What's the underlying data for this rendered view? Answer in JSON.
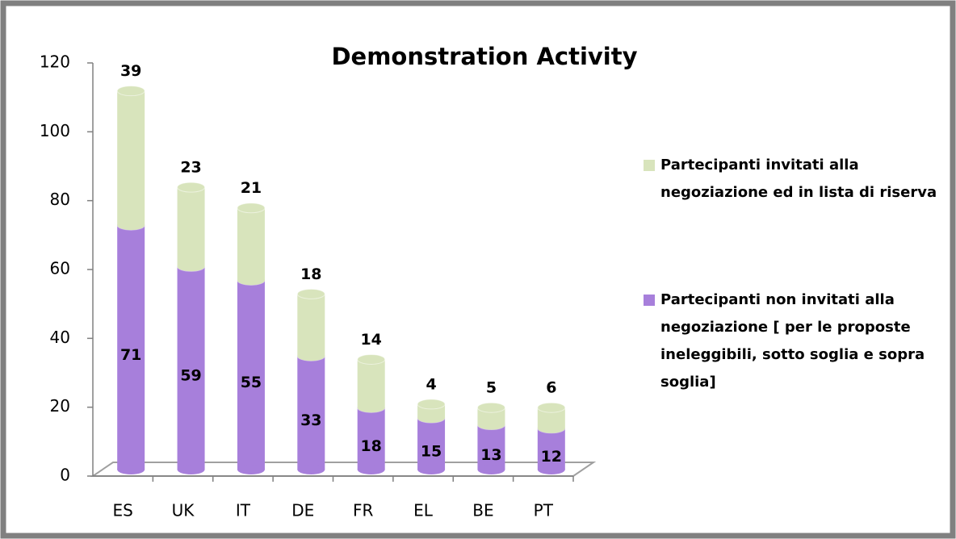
{
  "chart_data": {
    "type": "bar",
    "stacked": true,
    "title": "Demonstration  Activity",
    "title_color": "#ff0000",
    "categories": [
      "ES",
      "UK",
      "IT",
      "DE",
      "FR",
      "EL",
      "BE",
      "PT"
    ],
    "series": [
      {
        "name": "Partecipanti non invitati alla negoziazione [ per le proposte ineleggibili, sotto soglia e sopra soglia]",
        "color": "#a77fdb",
        "values": [
          71,
          59,
          55,
          33,
          18,
          15,
          13,
          12
        ]
      },
      {
        "name": "Partecipanti invitati alla negoziazione ed in lista di riserva",
        "color": "#d8e4bc",
        "values": [
          39,
          23,
          21,
          18,
          14,
          4,
          5,
          6
        ]
      }
    ],
    "ylim": [
      0,
      120
    ],
    "yticks": [
      0,
      20,
      40,
      60,
      80,
      100,
      120
    ],
    "grid": false,
    "legend_position": "right"
  }
}
